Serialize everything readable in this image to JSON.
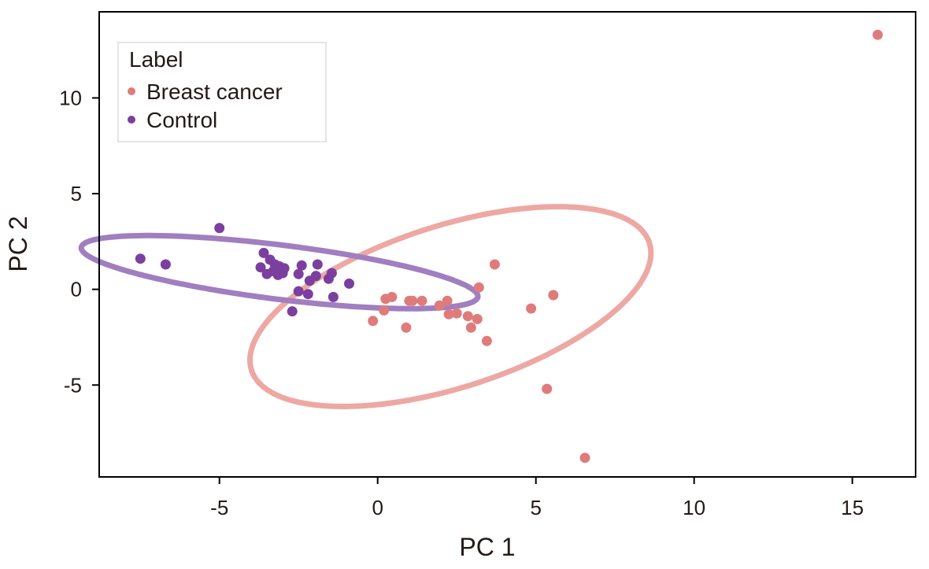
{
  "chart_data": {
    "type": "scatter",
    "title": "",
    "xlabel": "PC 1",
    "ylabel": "PC 2",
    "xlim": [
      -8.8,
      17.0
    ],
    "ylim": [
      -9.8,
      14.5
    ],
    "xticks": [
      -5,
      0,
      5,
      10,
      15
    ],
    "xtick_labels": [
      "-5",
      "0",
      "5",
      "10",
      "15"
    ],
    "yticks": [
      -5,
      0,
      5,
      10
    ],
    "ytick_labels": [
      "-5",
      "0",
      "5",
      "10"
    ],
    "grid": false,
    "legend": {
      "title": "Label",
      "placement": "top-left",
      "entries": [
        "Breast cancer",
        "Control"
      ]
    },
    "series": [
      {
        "name": "Breast cancer",
        "color": "#e07b7b",
        "ellipse_color": "#eda8a3",
        "ellipse": {
          "center": [
            2.3,
            -0.9
          ],
          "rx": 7.25,
          "ry": 3.85,
          "angle_deg": 35
        },
        "points": [
          [
            15.8,
            13.3
          ],
          [
            3.7,
            1.3
          ],
          [
            3.2,
            0.1
          ],
          [
            5.55,
            -0.3
          ],
          [
            4.85,
            -1.0
          ],
          [
            0.25,
            -0.5
          ],
          [
            0.45,
            -0.4
          ],
          [
            1.0,
            -0.6
          ],
          [
            1.1,
            -0.6
          ],
          [
            1.4,
            -0.6
          ],
          [
            2.2,
            -0.6
          ],
          [
            1.95,
            -0.85
          ],
          [
            0.2,
            -1.1
          ],
          [
            -0.15,
            -1.65
          ],
          [
            0.9,
            -2.0
          ],
          [
            2.25,
            -1.3
          ],
          [
            2.5,
            -1.25
          ],
          [
            2.85,
            -1.4
          ],
          [
            3.15,
            -1.55
          ],
          [
            2.95,
            -2.0
          ],
          [
            3.45,
            -2.7
          ],
          [
            5.35,
            -5.2
          ],
          [
            6.55,
            -8.8
          ]
        ]
      },
      {
        "name": "Control",
        "color": "#7b3fa0",
        "ellipse_color": "#a07ec0",
        "ellipse": {
          "center": [
            -3.1,
            0.9
          ],
          "rx": 6.4,
          "ry": 1.4,
          "angle_deg": -12
        },
        "points": [
          [
            -7.5,
            1.6
          ],
          [
            -6.7,
            1.3
          ],
          [
            -5.0,
            3.2
          ],
          [
            -3.6,
            1.9
          ],
          [
            -3.4,
            1.55
          ],
          [
            -3.25,
            1.3
          ],
          [
            -3.1,
            1.2
          ],
          [
            -2.95,
            1.1
          ],
          [
            -3.0,
            0.85
          ],
          [
            -3.15,
            0.75
          ],
          [
            -3.3,
            0.95
          ],
          [
            -3.5,
            0.8
          ],
          [
            -3.7,
            1.15
          ],
          [
            -2.4,
            1.25
          ],
          [
            -1.9,
            1.3
          ],
          [
            -2.5,
            0.8
          ],
          [
            -2.15,
            0.45
          ],
          [
            -1.95,
            0.7
          ],
          [
            -1.55,
            0.55
          ],
          [
            -1.45,
            0.85
          ],
          [
            -0.9,
            0.3
          ],
          [
            -2.5,
            -0.1
          ],
          [
            -2.2,
            -0.25
          ],
          [
            -1.4,
            -0.4
          ],
          [
            -2.7,
            -1.15
          ]
        ]
      }
    ]
  }
}
